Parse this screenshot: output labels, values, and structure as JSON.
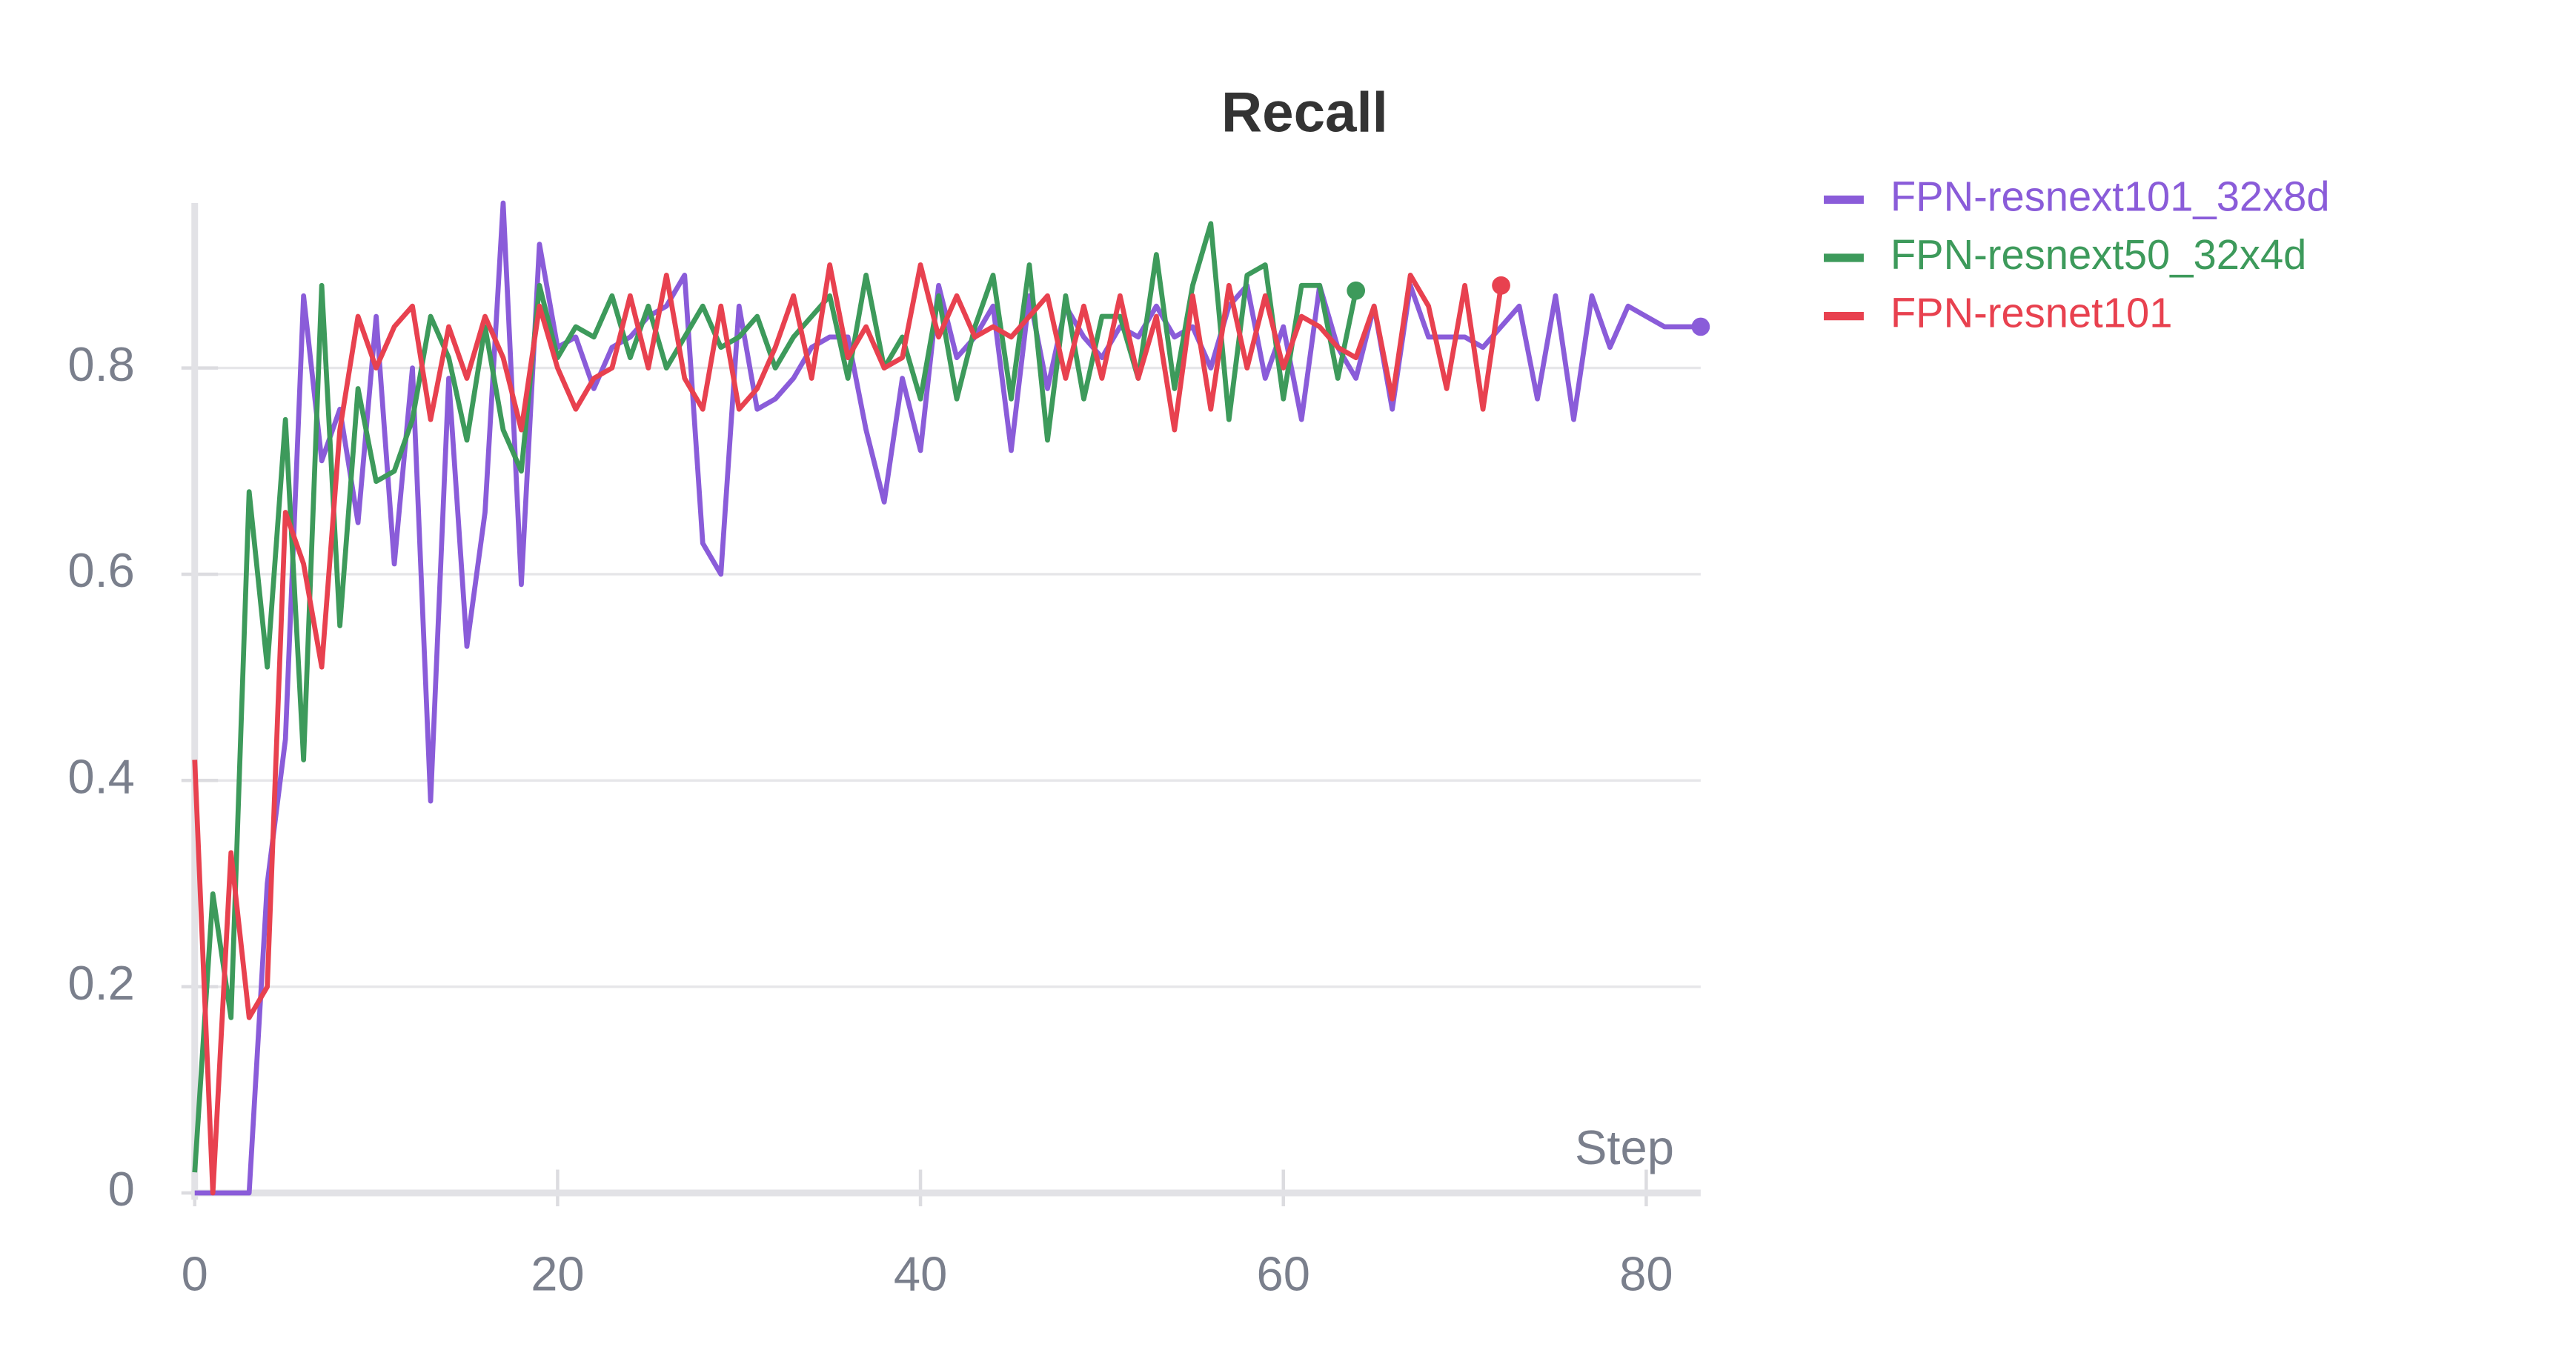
{
  "chart_data": {
    "type": "line",
    "title": "Recall",
    "x_label": "Step",
    "x": [
      0,
      1,
      2,
      3,
      4,
      5,
      6,
      7,
      8,
      9,
      10,
      11,
      12,
      13,
      14,
      15,
      16,
      17,
      18,
      19,
      20,
      21,
      22,
      23,
      24,
      25,
      26,
      27,
      28,
      29,
      30,
      31,
      32,
      33,
      34,
      35,
      36,
      37,
      38,
      39,
      40,
      41,
      42,
      43,
      44,
      45,
      46,
      47,
      48,
      49,
      50,
      51,
      52,
      53,
      54,
      55,
      56,
      57,
      58,
      59,
      60,
      61,
      62,
      63,
      64,
      65,
      66,
      67,
      68,
      69,
      70,
      71,
      72,
      73,
      74,
      75,
      76,
      77,
      78,
      79,
      80,
      81,
      82,
      83
    ],
    "series": [
      {
        "name": "FPN-resnext101_32x8d",
        "color": "#8a5cd9",
        "values": [
          0,
          0,
          0,
          0,
          0.3,
          0.44,
          0.87,
          0.71,
          0.76,
          0.65,
          0.85,
          0.61,
          0.8,
          0.38,
          0.79,
          0.53,
          0.66,
          0.96,
          0.59,
          0.92,
          0.82,
          0.83,
          0.78,
          0.82,
          0.83,
          0.85,
          0.86,
          0.89,
          0.63,
          0.6,
          0.86,
          0.76,
          0.77,
          0.79,
          0.82,
          0.83,
          0.83,
          0.74,
          0.67,
          0.79,
          0.72,
          0.88,
          0.81,
          0.83,
          0.86,
          0.72,
          0.87,
          0.78,
          0.86,
          0.83,
          0.81,
          0.84,
          0.83,
          0.86,
          0.83,
          0.84,
          0.8,
          0.86,
          0.88,
          0.79,
          0.84,
          0.75,
          0.88,
          0.82,
          0.79,
          0.86,
          0.76,
          0.88,
          0.83,
          0.83,
          0.83,
          0.82,
          0.84,
          0.86,
          0.77,
          0.87,
          0.75,
          0.87,
          0.82,
          0.86,
          0.85,
          0.84,
          0.84,
          0.84
        ]
      },
      {
        "name": "FPN-resnext50_32x4d",
        "color": "#3d9a5b",
        "values": [
          0.02,
          0.29,
          0.17,
          0.68,
          0.51,
          0.75,
          0.42,
          0.88,
          0.55,
          0.78,
          0.69,
          0.7,
          0.75,
          0.85,
          0.81,
          0.73,
          0.84,
          0.74,
          0.7,
          0.88,
          0.81,
          0.84,
          0.83,
          0.87,
          0.81,
          0.86,
          0.8,
          0.83,
          0.86,
          0.82,
          0.83,
          0.85,
          0.8,
          0.83,
          0.85,
          0.87,
          0.79,
          0.89,
          0.8,
          0.83,
          0.77,
          0.87,
          0.77,
          0.84,
          0.89,
          0.77,
          0.9,
          0.73,
          0.87,
          0.77,
          0.85,
          0.85,
          0.79,
          0.91,
          0.78,
          0.88,
          0.94,
          0.75,
          0.89,
          0.9,
          0.77,
          0.88,
          0.88,
          0.79,
          0.875,
          null,
          null,
          null,
          null,
          null,
          null,
          null,
          null,
          null,
          null,
          null,
          null,
          null,
          null,
          null,
          null,
          null,
          null,
          null
        ]
      },
      {
        "name": "FPN-resnet101",
        "color": "#e8414f",
        "values": [
          0.42,
          0,
          0.33,
          0.17,
          0.2,
          0.66,
          0.61,
          0.51,
          0.74,
          0.85,
          0.8,
          0.84,
          0.86,
          0.75,
          0.84,
          0.79,
          0.85,
          0.81,
          0.74,
          0.86,
          0.8,
          0.76,
          0.79,
          0.8,
          0.87,
          0.8,
          0.89,
          0.79,
          0.76,
          0.86,
          0.76,
          0.78,
          0.82,
          0.87,
          0.79,
          0.9,
          0.81,
          0.84,
          0.8,
          0.81,
          0.9,
          0.83,
          0.87,
          0.83,
          0.84,
          0.83,
          0.85,
          0.87,
          0.79,
          0.86,
          0.79,
          0.87,
          0.79,
          0.85,
          0.74,
          0.87,
          0.76,
          0.88,
          0.8,
          0.87,
          0.8,
          0.85,
          0.84,
          0.82,
          0.81,
          0.86,
          0.77,
          0.89,
          0.86,
          0.78,
          0.88,
          0.76,
          0.88,
          null,
          null,
          null,
          null,
          null,
          null,
          null,
          null,
          null,
          null,
          null
        ]
      }
    ],
    "xlim": [
      0,
      83
    ],
    "ylim": [
      0,
      0.96
    ],
    "xticks": [
      0,
      20,
      40,
      60,
      80
    ],
    "yticks": [
      0,
      0.2,
      0.4,
      0.6,
      0.8
    ],
    "grid": true,
    "legend": "top-right"
  }
}
